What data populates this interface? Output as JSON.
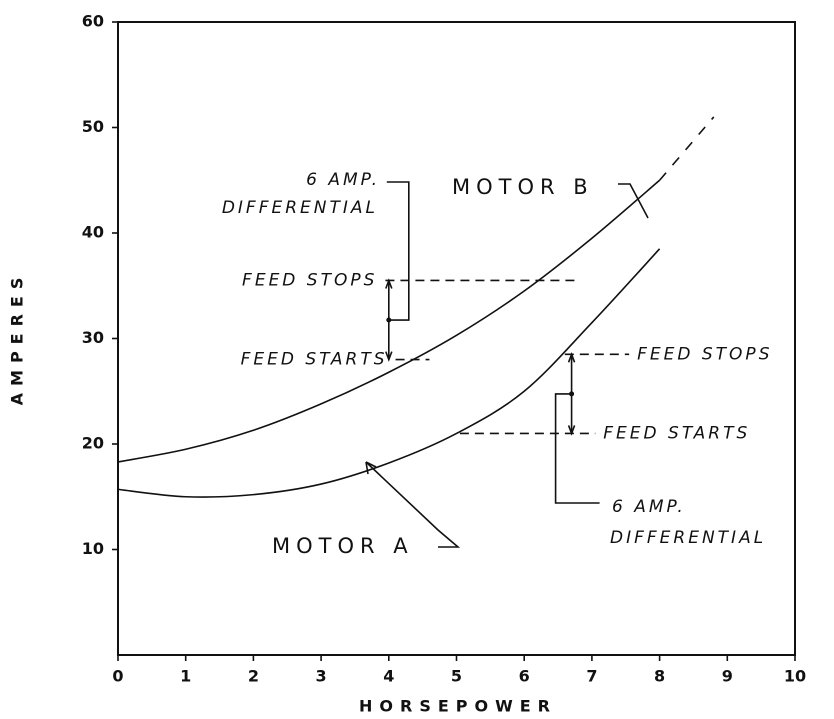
{
  "chart_data": {
    "type": "line",
    "xlabel": "HORSEPOWER",
    "ylabel": "AMPERES",
    "xlim": [
      0,
      10
    ],
    "xticks": [
      0,
      1,
      2,
      3,
      4,
      5,
      6,
      7,
      8,
      9,
      10
    ],
    "ylim": [
      0,
      60
    ],
    "yticks": [
      10,
      20,
      30,
      40,
      50,
      60
    ],
    "grid": false,
    "series": [
      {
        "name": "MOTOR B",
        "color": "#111111",
        "dashed_from_x": 8,
        "x": [
          0,
          1,
          2,
          3,
          4,
          5,
          6,
          7,
          8,
          8.8
        ],
        "values": [
          18.3,
          19.5,
          21.3,
          23.8,
          26.8,
          30.3,
          34.5,
          39.5,
          45,
          51
        ]
      },
      {
        "name": "MOTOR A",
        "color": "#111111",
        "x": [
          0,
          1,
          2,
          3,
          4,
          5,
          6,
          7,
          8
        ],
        "values": [
          15.7,
          15,
          15.2,
          16.2,
          18.2,
          21,
          25,
          31.5,
          38.5
        ]
      }
    ],
    "annotations": [
      {
        "label": "FEED STOPS",
        "y": 35.5,
        "x": [
          3.95,
          6.75
        ],
        "side": "left"
      },
      {
        "label": "FEED STARTS",
        "y": 28,
        "x": [
          4.1,
          4.6
        ],
        "side": "left"
      },
      {
        "label": "FEED STOPS",
        "y": 28.5,
        "x": [
          6.6,
          7.55
        ],
        "side": "right"
      },
      {
        "label": "FEED STARTS",
        "y": 21,
        "x": [
          5.05,
          7.05
        ],
        "side": "right"
      }
    ],
    "differentials": [
      {
        "lines": [
          "6 AMP.",
          "DIFFERENTIAL"
        ],
        "x": 4,
        "stops": 0,
        "starts": 1
      },
      {
        "lines": [
          "6 AMP.",
          "DIFFERENTIAL"
        ],
        "x": 6.7,
        "stops": 2,
        "starts": 3
      }
    ]
  }
}
